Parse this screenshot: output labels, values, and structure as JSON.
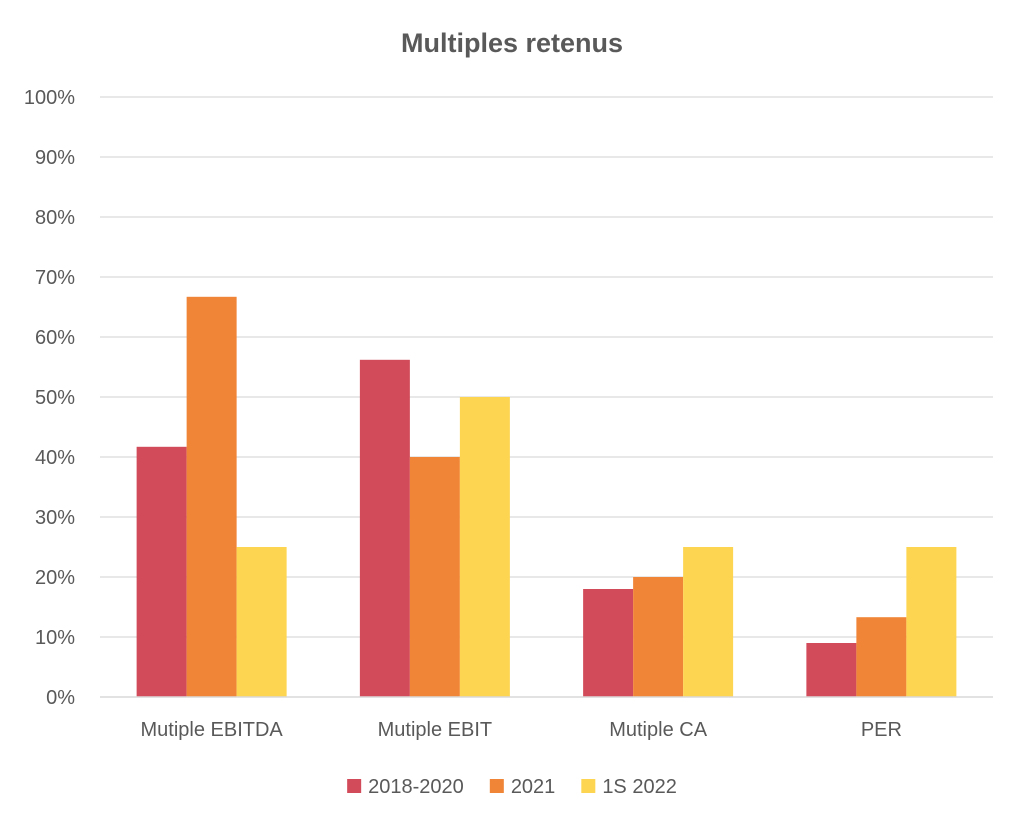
{
  "chart_data": {
    "type": "bar",
    "title": "Multiples retenus",
    "xlabel": "",
    "ylabel": "",
    "categories": [
      "Mutiple EBITDA",
      "Mutiple EBIT",
      "Mutiple CA",
      "PER"
    ],
    "series": [
      {
        "name": "2018-2020",
        "values": [
          0.417,
          0.562,
          0.18,
          0.09
        ],
        "color": "#d24b5a"
      },
      {
        "name": "2021",
        "values": [
          0.667,
          0.4,
          0.2,
          0.133
        ],
        "color": "#f08537"
      },
      {
        "name": "1S 2022",
        "values": [
          0.25,
          0.5,
          0.25,
          0.25
        ],
        "color": "#fdd550"
      }
    ],
    "ylim": [
      0,
      1
    ],
    "yticks": [
      "0%",
      "10%",
      "20%",
      "30%",
      "40%",
      "50%",
      "60%",
      "70%",
      "80%",
      "90%",
      "100%"
    ],
    "grid": true,
    "legend_position": "bottom"
  }
}
